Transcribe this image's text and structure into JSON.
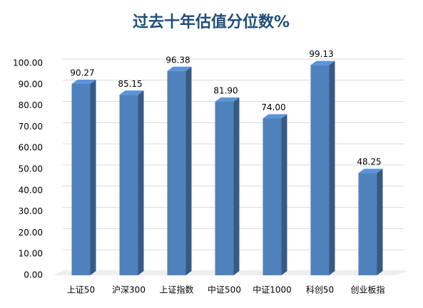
{
  "chart_data": {
    "type": "bar3d",
    "title": "过去十年估值分位数%",
    "categories": [
      "上证50",
      "沪深300",
      "上证指数",
      "中证500",
      "中证1000",
      "科创50",
      "创业板指"
    ],
    "values": [
      90.27,
      85.15,
      96.38,
      81.9,
      74,
      99.13,
      48.25
    ],
    "value_labels": [
      "90.27",
      "85.15",
      "96.38",
      "81.90",
      "74.00",
      "99.13",
      "48.25"
    ],
    "color": "#4f81bd",
    "ylim": [
      0,
      100
    ],
    "yticks": [
      {
        "value": 0,
        "label": "0.00"
      },
      {
        "value": 10,
        "label": "10.00"
      },
      {
        "value": 20,
        "label": "20.00"
      },
      {
        "value": 30,
        "label": "30.00"
      },
      {
        "value": 40,
        "label": "40.00"
      },
      {
        "value": 50,
        "label": "50.00"
      },
      {
        "value": 60,
        "label": "60.00"
      },
      {
        "value": 70,
        "label": "70.00"
      },
      {
        "value": 80,
        "label": "80.00"
      },
      {
        "value": 90,
        "label": "90.00"
      },
      {
        "value": 100,
        "label": "100.00"
      }
    ],
    "grid": true
  }
}
